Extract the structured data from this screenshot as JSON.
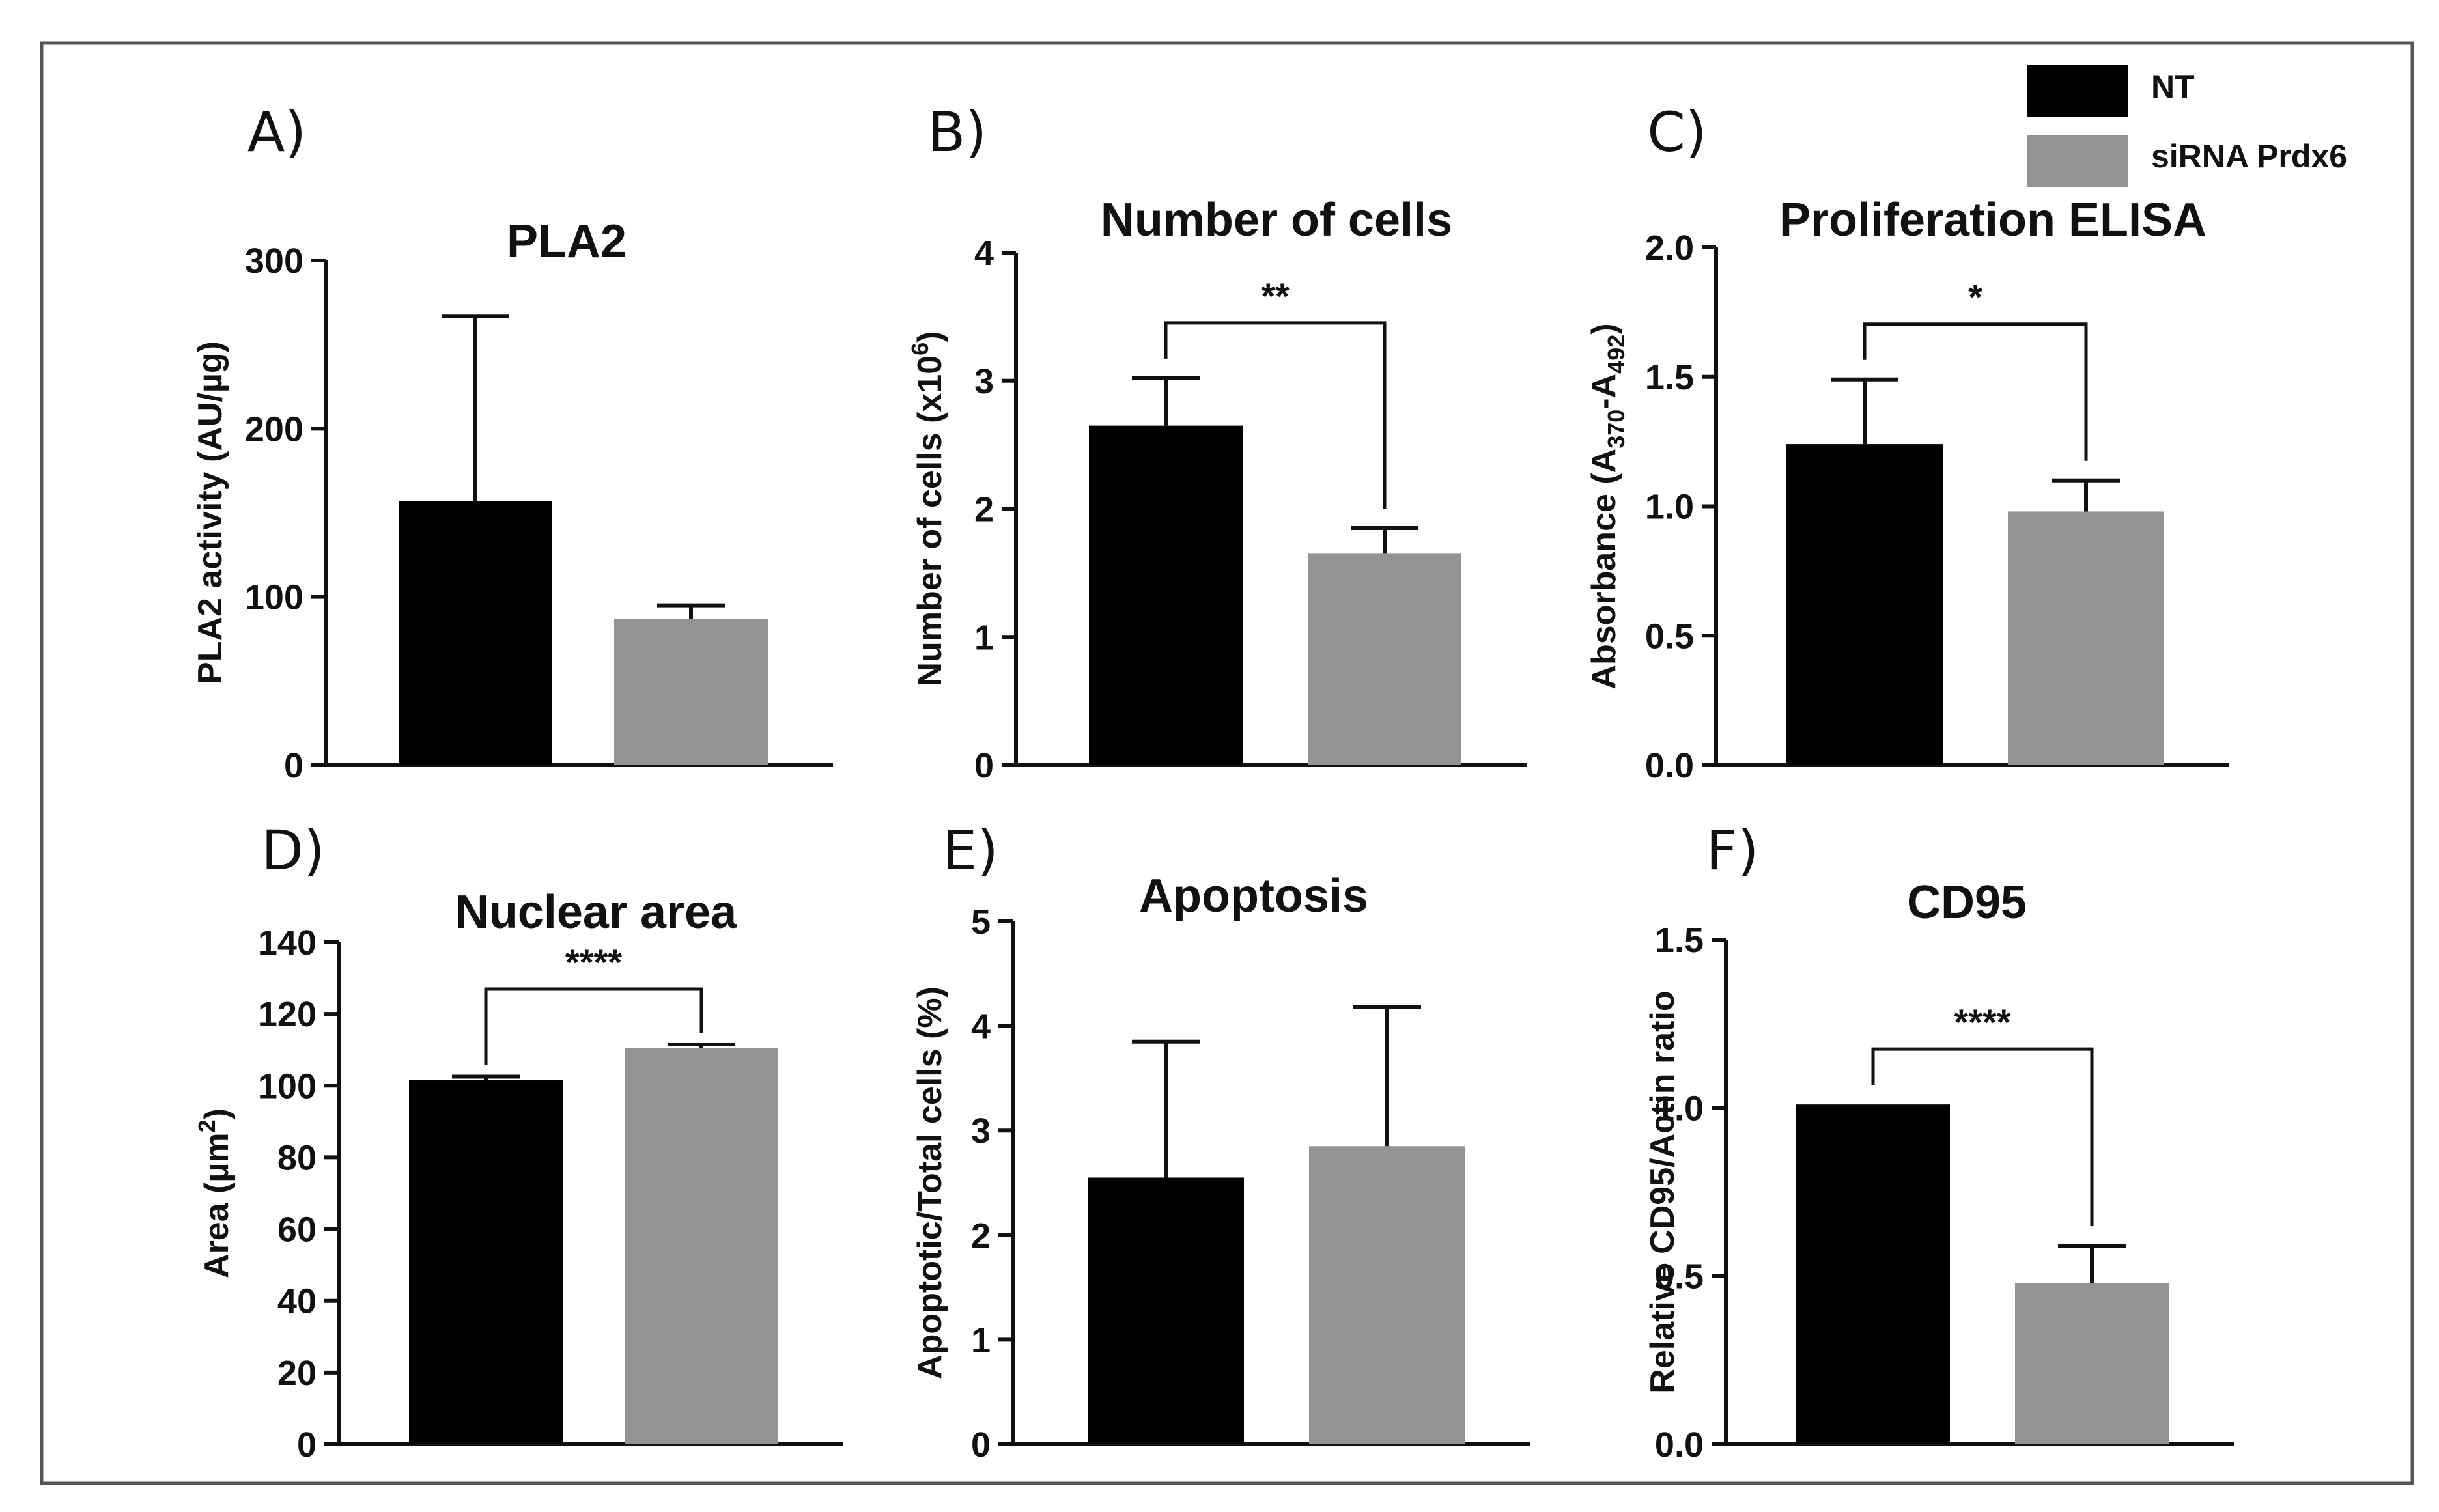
{
  "colors": {
    "NT": "#000000",
    "siRNA Prdx6": "#939393",
    "frame": "#555555"
  },
  "legend": [
    {
      "label": "NT",
      "color": "#000000"
    },
    {
      "label": "siRNA Prdx6",
      "color": "#939393"
    }
  ],
  "chart_data": [
    {
      "panel": "A)",
      "type": "bar",
      "title": "PLA2",
      "ylabel": {
        "main": "PLA2 activity (AU/µg)"
      },
      "ylim": [
        0,
        300
      ],
      "yticks": [
        "0",
        "100",
        "200",
        "300"
      ],
      "categories": [
        "NT",
        "siRNA Prdx6"
      ],
      "values": [
        157,
        87
      ],
      "errors": [
        110,
        8
      ],
      "significance": null
    },
    {
      "panel": "B)",
      "type": "bar",
      "title": "Number of cells",
      "ylabel": {
        "main": "Number of cells (x10",
        "sup": "6",
        "tail": ")"
      },
      "ylim": [
        0,
        4
      ],
      "yticks": [
        "0",
        "1",
        "2",
        "3",
        "4"
      ],
      "categories": [
        "NT",
        "siRNA Prdx6"
      ],
      "values": [
        2.65,
        1.65
      ],
      "errors": [
        0.37,
        0.2
      ],
      "significance": "**"
    },
    {
      "panel": "C)",
      "type": "bar",
      "title": "Proliferation ELISA",
      "ylabel": {
        "main": "Absorbance (A",
        "sub1": "370",
        "mid": "-A",
        "sub2": "492",
        "tail": ")"
      },
      "ylim": [
        0,
        2
      ],
      "yticks": [
        "0.0",
        "0.5",
        "1.0",
        "1.5",
        "2.0"
      ],
      "categories": [
        "NT",
        "siRNA Prdx6"
      ],
      "values": [
        1.24,
        0.98
      ],
      "errors": [
        0.25,
        0.12
      ],
      "significance": "*"
    },
    {
      "panel": "D)",
      "type": "bar",
      "title": "Nuclear area",
      "ylabel": {
        "main": "Area (µm",
        "sup": "2",
        "tail": ")"
      },
      "ylim": [
        0,
        140
      ],
      "yticks": [
        "0",
        "20",
        "40",
        "60",
        "80",
        "100",
        "120",
        "140"
      ],
      "categories": [
        "NT",
        "siRNA Prdx6"
      ],
      "values": [
        101.5,
        110.5
      ],
      "errors": [
        1,
        1
      ],
      "significance": "****"
    },
    {
      "panel": "E)",
      "type": "bar",
      "title": "Apoptosis",
      "ylabel": {
        "main": "Apoptotic/Total cells (%)"
      },
      "ylim": [
        0,
        5
      ],
      "yticks": [
        "0",
        "1",
        "2",
        "3",
        "4",
        "5"
      ],
      "categories": [
        "NT",
        "siRNA Prdx6"
      ],
      "values": [
        2.55,
        2.85
      ],
      "errors": [
        1.3,
        1.33
      ],
      "significance": null
    },
    {
      "panel": "F)",
      "type": "bar",
      "title": "CD95",
      "ylabel": {
        "main": "Relative CD95/Actin ratio"
      },
      "ylim": [
        0,
        1.5
      ],
      "yticks": [
        "0.0",
        "0.5",
        "1.0",
        "1.5"
      ],
      "categories": [
        "NT",
        "siRNA Prdx6"
      ],
      "values": [
        1.01,
        0.48
      ],
      "errors": [
        0,
        0.11
      ],
      "significance": "****"
    }
  ]
}
